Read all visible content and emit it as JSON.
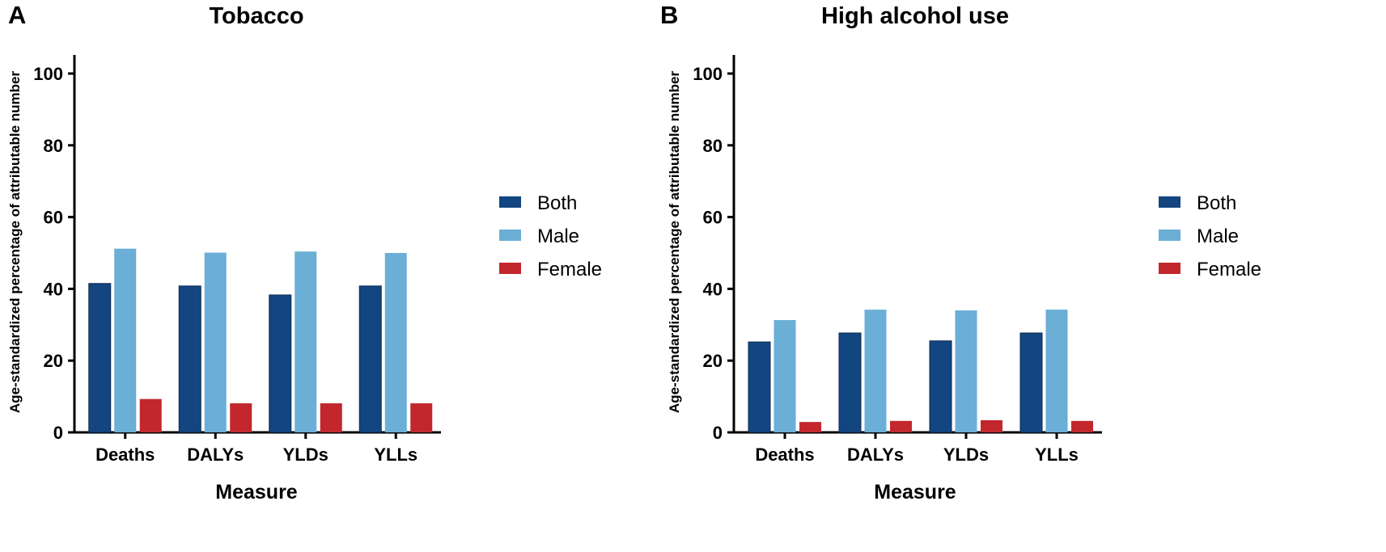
{
  "chart_data": [
    {
      "type": "bar",
      "panel": "A",
      "title": "Tobacco",
      "xlabel": "Measure",
      "ylabel": "Age-standardized percentage of attributable number",
      "ylim": [
        0,
        105
      ],
      "yticks": [
        0,
        20,
        40,
        60,
        80,
        100
      ],
      "grid": false,
      "legend_position": "right",
      "categories": [
        "Deaths",
        "DALYs",
        "YLDs",
        "YLLs"
      ],
      "series": [
        {
          "name": "Both",
          "color": "#134580",
          "values": [
            41.5,
            40.8,
            38.3,
            40.8
          ]
        },
        {
          "name": "Male",
          "color": "#6baed6",
          "values": [
            51.2,
            50.1,
            50.4,
            50.0
          ]
        },
        {
          "name": "Female",
          "color": "#c1272d",
          "values": [
            9.3,
            8.1,
            8.1,
            8.1
          ]
        }
      ]
    },
    {
      "type": "bar",
      "panel": "B",
      "title": "High alcohol use",
      "xlabel": "Measure",
      "ylabel": "Age-standardized percentage of attributable number",
      "ylim": [
        0,
        105
      ],
      "yticks": [
        0,
        20,
        40,
        60,
        80,
        100
      ],
      "grid": false,
      "legend_position": "right",
      "categories": [
        "Deaths",
        "DALYs",
        "YLDs",
        "YLLs"
      ],
      "series": [
        {
          "name": "Both",
          "color": "#134580",
          "values": [
            25.2,
            27.7,
            25.5,
            27.7
          ]
        },
        {
          "name": "Male",
          "color": "#6baed6",
          "values": [
            31.3,
            34.2,
            34.0,
            34.2
          ]
        },
        {
          "name": "Female",
          "color": "#c1272d",
          "values": [
            2.9,
            3.2,
            3.4,
            3.2
          ]
        }
      ]
    }
  ]
}
